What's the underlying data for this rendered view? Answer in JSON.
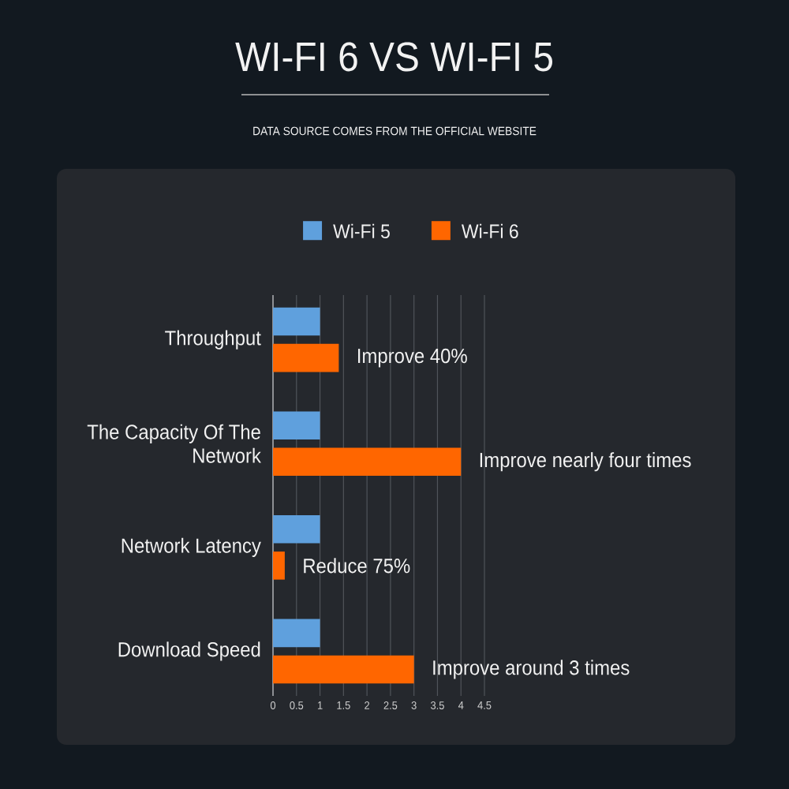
{
  "chart_data": {
    "type": "bar",
    "orientation": "horizontal",
    "title": "WI-FI 6 VS WI-FI 5",
    "subtitle": "DATA SOURCE COMES FROM THE OFFICIAL WEBSITE",
    "categories": [
      "Throughput",
      "The Capacity Of The Network",
      "Network Latency",
      "Download Speed"
    ],
    "series": [
      {
        "name": "Wi-Fi 5",
        "color": "#5fa0dd",
        "values": [
          1,
          1,
          1,
          1
        ]
      },
      {
        "name": "Wi-Fi 6",
        "color": "#ff6600",
        "values": [
          1.4,
          4,
          0.25,
          3
        ],
        "value_labels": [
          "Improve 40%",
          "Improve nearly four times",
          "Reduce 75%",
          "Improve around 3 times"
        ]
      }
    ],
    "xlim": [
      0,
      4.5
    ],
    "xticks": [
      0,
      0.5,
      1,
      1.5,
      2,
      2.5,
      3,
      3.5,
      4,
      4.5
    ],
    "grid": "x",
    "legend": "top"
  }
}
